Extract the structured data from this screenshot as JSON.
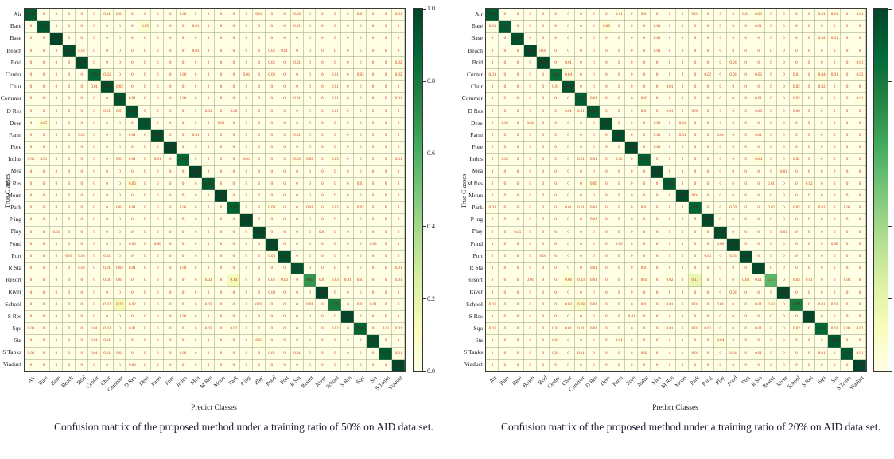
{
  "axis": {
    "x_label": "Predict Classes",
    "y_label": "True Classes"
  },
  "colorbar": {
    "min": 0,
    "max": 1,
    "ticks": [
      "1.0",
      "0.8",
      "0.6",
      "0.4",
      "0.2",
      "0.0"
    ]
  },
  "colors": {
    "cmap_low": "#ffffe5",
    "cmap_high": "#004529",
    "value_red": "#d02f1b",
    "value_dark": "#66180e",
    "grid": "#7d7d5f",
    "border": "#3a3a3a"
  },
  "captions": [
    "Confusion matrix of the proposed method under a training ratio of 50% on AID data set.",
    "Confusion matrix of the proposed method under a training ratio of 20% on AID data set."
  ],
  "chart_data": [
    {
      "type": "heatmap",
      "title": "Confusion matrix, training ratio 50%, AID data set",
      "xlabel": "Predict Classes",
      "ylabel": "True Classes",
      "colormap": "YlGn",
      "vmin": 0,
      "vmax": 1,
      "colorbar_labels": true,
      "categories": [
        "Air",
        "Bare",
        "Base",
        "Beach",
        "Brid",
        "Center",
        "Chur",
        "Commer",
        "D Res",
        "Dese",
        "Farm",
        "Fore",
        "Indus",
        "Mea",
        "M Res",
        "Moun",
        "Park",
        "P ing",
        "Play",
        "Pond",
        "Port",
        "R Sta",
        "Resort",
        "River",
        "School",
        "S Res",
        "Squ",
        "Sta",
        "S Tanks",
        "Viaduct"
      ],
      "diagonal": [
        "0.93",
        "0.94",
        "1.00",
        "0.97",
        "0.97",
        "0.88",
        "0.97",
        "0.95",
        "0.95",
        "0.95",
        "0.97",
        "1.00",
        "0.88",
        "1.00",
        "0.93",
        "1.00",
        "0.90",
        "1.00",
        "0.98",
        "0.99",
        "0.96",
        "0.95",
        "0.69",
        "1.00",
        "0.79",
        "0.99",
        "0.89",
        "0.96",
        "0.93",
        "1.00"
      ],
      "cells": [
        [
          0,
          6,
          "0.01"
        ],
        [
          0,
          7,
          "0.01"
        ],
        [
          0,
          12,
          "0.01"
        ],
        [
          0,
          18,
          "0.01"
        ],
        [
          0,
          21,
          "0.02"
        ],
        [
          0,
          26,
          "0.01"
        ],
        [
          0,
          29,
          "0.01"
        ],
        [
          1,
          9,
          "0.05"
        ],
        [
          1,
          13,
          "0.01"
        ],
        [
          1,
          21,
          "0.01"
        ],
        [
          3,
          4,
          "0.01"
        ],
        [
          3,
          13,
          "0.01"
        ],
        [
          3,
          19,
          "0.01"
        ],
        [
          3,
          20,
          "0.01"
        ],
        [
          4,
          19,
          "0.01"
        ],
        [
          4,
          21,
          "0.01"
        ],
        [
          4,
          29,
          "0.02"
        ],
        [
          5,
          6,
          "0.02"
        ],
        [
          5,
          12,
          "0.02"
        ],
        [
          5,
          17,
          "0.01"
        ],
        [
          5,
          19,
          "0.02"
        ],
        [
          5,
          24,
          "0.01"
        ],
        [
          5,
          26,
          "0.02"
        ],
        [
          5,
          29,
          "0.02"
        ],
        [
          6,
          5,
          "0.01"
        ],
        [
          6,
          7,
          "0.02"
        ],
        [
          6,
          24,
          "0.01"
        ],
        [
          7,
          8,
          "0.01"
        ],
        [
          7,
          12,
          "0.01"
        ],
        [
          7,
          21,
          "0.01"
        ],
        [
          7,
          24,
          "0.01"
        ],
        [
          7,
          29,
          "0.01"
        ],
        [
          8,
          6,
          "0.01"
        ],
        [
          8,
          7,
          "0.01"
        ],
        [
          8,
          14,
          "0.01"
        ],
        [
          8,
          16,
          "0.00"
        ],
        [
          8,
          24,
          "0.01"
        ],
        [
          9,
          1,
          "0.05"
        ],
        [
          9,
          15,
          "0.01"
        ],
        [
          10,
          4,
          "0.01"
        ],
        [
          10,
          8,
          "0.01"
        ],
        [
          10,
          13,
          "0.01"
        ],
        [
          10,
          21,
          "0.01"
        ],
        [
          12,
          0,
          "0.01"
        ],
        [
          12,
          1,
          "0.01"
        ],
        [
          12,
          7,
          "0.01"
        ],
        [
          12,
          8,
          "0.01"
        ],
        [
          12,
          10,
          "0.01"
        ],
        [
          12,
          17,
          "0.01"
        ],
        [
          12,
          21,
          "0.03"
        ],
        [
          12,
          22,
          "0.02"
        ],
        [
          12,
          24,
          "0.03"
        ],
        [
          12,
          29,
          "0.01"
        ],
        [
          14,
          8,
          "0.06"
        ],
        [
          14,
          26,
          "0.01"
        ],
        [
          16,
          7,
          "0.01"
        ],
        [
          16,
          8,
          "0.01"
        ],
        [
          16,
          12,
          "0.01"
        ],
        [
          16,
          19,
          "0.03"
        ],
        [
          16,
          22,
          "0.01"
        ],
        [
          16,
          24,
          "0.02"
        ],
        [
          16,
          26,
          "0.02"
        ],
        [
          18,
          2,
          "0.01"
        ],
        [
          18,
          23,
          "0.01"
        ],
        [
          19,
          8,
          "0.00"
        ],
        [
          19,
          10,
          "0.00"
        ],
        [
          19,
          27,
          "0.00"
        ],
        [
          20,
          3,
          "0.01"
        ],
        [
          20,
          4,
          "0.01"
        ],
        [
          20,
          6,
          "0.01"
        ],
        [
          20,
          19,
          "0.02"
        ],
        [
          21,
          4,
          "0.01"
        ],
        [
          21,
          6,
          "0.01"
        ],
        [
          21,
          7,
          "0.02"
        ],
        [
          21,
          8,
          "0.01"
        ],
        [
          21,
          12,
          "0.01"
        ],
        [
          21,
          29,
          "0.01"
        ],
        [
          22,
          6,
          "0.01"
        ],
        [
          22,
          7,
          "0.01"
        ],
        [
          22,
          14,
          "0.03"
        ],
        [
          22,
          16,
          "0.14"
        ],
        [
          22,
          19,
          "0.01"
        ],
        [
          22,
          20,
          "0.03"
        ],
        [
          22,
          23,
          "0.01"
        ],
        [
          22,
          24,
          "0.03"
        ],
        [
          22,
          25,
          "0.01"
        ],
        [
          22,
          26,
          "0.01"
        ],
        [
          22,
          29,
          "0.01"
        ],
        [
          23,
          19,
          "0.00"
        ],
        [
          24,
          6,
          "0.02"
        ],
        [
          24,
          7,
          "0.13"
        ],
        [
          24,
          8,
          "0.02"
        ],
        [
          24,
          14,
          "0.01"
        ],
        [
          24,
          18,
          "0.01"
        ],
        [
          24,
          22,
          "0.01"
        ],
        [
          24,
          26,
          "0.01"
        ],
        [
          24,
          27,
          "0.01"
        ],
        [
          25,
          12,
          "0.01"
        ],
        [
          26,
          0,
          "0.01"
        ],
        [
          26,
          5,
          "0.01"
        ],
        [
          26,
          6,
          "0.03"
        ],
        [
          26,
          8,
          "0.01"
        ],
        [
          26,
          14,
          "0.01"
        ],
        [
          26,
          16,
          "0.02"
        ],
        [
          26,
          24,
          "0.02"
        ],
        [
          26,
          28,
          "0.01"
        ],
        [
          26,
          29,
          "0.01"
        ],
        [
          27,
          5,
          "0.01"
        ],
        [
          27,
          6,
          "0.01"
        ],
        [
          27,
          18,
          "0.03"
        ],
        [
          28,
          0,
          "0.01"
        ],
        [
          28,
          5,
          "0.01"
        ],
        [
          28,
          6,
          "0.01"
        ],
        [
          28,
          7,
          "0.01"
        ],
        [
          28,
          12,
          "0.02"
        ],
        [
          28,
          19,
          "0.01"
        ],
        [
          28,
          21,
          "0.01"
        ],
        [
          28,
          29,
          "0.01"
        ],
        [
          29,
          8,
          "0.00"
        ]
      ]
    },
    {
      "type": "heatmap",
      "title": "Confusion matrix, training ratio 20%, AID data set",
      "xlabel": "Predict Classes",
      "ylabel": "True Classes",
      "colormap": "YlGn",
      "vmin": 0,
      "vmax": 1,
      "colorbar_labels": false,
      "categories": [
        "Air",
        "Bare",
        "Base",
        "Beach",
        "Brid",
        "Center",
        "Chur",
        "Commer",
        "D Res",
        "Dese",
        "Farm",
        "Fore",
        "Indus",
        "Mea",
        "M Res",
        "Moun",
        "Park",
        "P ing",
        "Play",
        "Pond",
        "Port",
        "R Sta",
        "Resort",
        "River",
        "School",
        "S Res",
        "Squ",
        "Sta",
        "S Tanks",
        "Viaduct"
      ],
      "diagonal": [
        "0.93",
        "0.92",
        "0.96",
        "0.99",
        "0.98",
        "0.85",
        "0.95",
        "0.91",
        "0.93",
        "0.97",
        "0.97",
        "0.99",
        "0.91",
        "0.99",
        "0.92",
        "0.99",
        "0.89",
        "0.99",
        "0.98",
        "0.99",
        "0.98",
        "0.98",
        "0.57",
        "0.99",
        "0.79",
        "0.99",
        "0.87",
        "0.94",
        "0.93",
        "1.00"
      ],
      "cells": [
        [
          0,
          10,
          "0.01"
        ],
        [
          0,
          12,
          "0.01"
        ],
        [
          0,
          16,
          "0.01"
        ],
        [
          0,
          20,
          "0.01"
        ],
        [
          0,
          21,
          "0.03"
        ],
        [
          0,
          26,
          "0.01"
        ],
        [
          0,
          27,
          "0.01"
        ],
        [
          0,
          29,
          "0.01"
        ],
        [
          1,
          0,
          "0.01"
        ],
        [
          1,
          9,
          "0.05"
        ],
        [
          1,
          13,
          "0.01"
        ],
        [
          1,
          21,
          "0.01"
        ],
        [
          2,
          13,
          "0.01"
        ],
        [
          2,
          26,
          "0.02"
        ],
        [
          2,
          27,
          "0.01"
        ],
        [
          3,
          4,
          "0.01"
        ],
        [
          3,
          13,
          "0.01"
        ],
        [
          4,
          6,
          "0.01"
        ],
        [
          4,
          19,
          "0.01"
        ],
        [
          4,
          29,
          "0.01"
        ],
        [
          5,
          0,
          "0.01"
        ],
        [
          5,
          6,
          "0.04"
        ],
        [
          5,
          17,
          "0.02"
        ],
        [
          5,
          19,
          "0.01"
        ],
        [
          5,
          21,
          "0.02"
        ],
        [
          5,
          24,
          "0.01"
        ],
        [
          5,
          26,
          "0.04"
        ],
        [
          5,
          27,
          "0.01"
        ],
        [
          5,
          29,
          "0.02"
        ],
        [
          6,
          5,
          "0.01"
        ],
        [
          6,
          14,
          "0.01"
        ],
        [
          6,
          24,
          "0.02"
        ],
        [
          6,
          26,
          "0.02"
        ],
        [
          7,
          8,
          "0.01"
        ],
        [
          7,
          12,
          "0.02"
        ],
        [
          7,
          21,
          "0.01"
        ],
        [
          7,
          24,
          "0.02"
        ],
        [
          7,
          29,
          "0.01"
        ],
        [
          8,
          6,
          "0.01"
        ],
        [
          8,
          7,
          "0.01"
        ],
        [
          8,
          12,
          "0.01"
        ],
        [
          8,
          14,
          "0.01"
        ],
        [
          8,
          16,
          "0.00"
        ],
        [
          8,
          21,
          "0.00"
        ],
        [
          8,
          24,
          "0.00"
        ],
        [
          9,
          1,
          "0.01"
        ],
        [
          9,
          3,
          "0.01"
        ],
        [
          9,
          13,
          "0.01"
        ],
        [
          9,
          15,
          "0.01"
        ],
        [
          10,
          13,
          "0.01"
        ],
        [
          10,
          15,
          "0.01"
        ],
        [
          10,
          18,
          "0.01"
        ],
        [
          10,
          21,
          "0.01"
        ],
        [
          11,
          13,
          "0.01"
        ],
        [
          12,
          1,
          "0.01"
        ],
        [
          12,
          7,
          "0.01"
        ],
        [
          12,
          8,
          "0.01"
        ],
        [
          12,
          10,
          "0.02"
        ],
        [
          12,
          21,
          "0.04"
        ],
        [
          12,
          24,
          "0.02"
        ],
        [
          13,
          23,
          "0.01"
        ],
        [
          14,
          8,
          "0.05"
        ],
        [
          14,
          22,
          "0.01"
        ],
        [
          14,
          25,
          "0.02"
        ],
        [
          15,
          16,
          "0.01"
        ],
        [
          16,
          0,
          "0.01"
        ],
        [
          16,
          6,
          "0.01"
        ],
        [
          16,
          7,
          "0.01"
        ],
        [
          16,
          8,
          "0.01"
        ],
        [
          16,
          12,
          "0.01"
        ],
        [
          16,
          19,
          "0.02"
        ],
        [
          16,
          22,
          "0.02"
        ],
        [
          16,
          24,
          "0.02"
        ],
        [
          16,
          26,
          "0.02"
        ],
        [
          16,
          28,
          "0.01"
        ],
        [
          17,
          8,
          "0.01"
        ],
        [
          18,
          2,
          "0.01"
        ],
        [
          18,
          23,
          "0.01"
        ],
        [
          19,
          10,
          "0.00"
        ],
        [
          19,
          18,
          "0.00"
        ],
        [
          19,
          27,
          "0.00"
        ],
        [
          20,
          4,
          "0.01"
        ],
        [
          20,
          17,
          "0.01"
        ],
        [
          20,
          19,
          "0.01"
        ],
        [
          21,
          8,
          "0.01"
        ],
        [
          21,
          12,
          "0.01"
        ],
        [
          22,
          3,
          "0.01"
        ],
        [
          22,
          6,
          "0.06"
        ],
        [
          22,
          7,
          "0.03"
        ],
        [
          22,
          8,
          "0.01"
        ],
        [
          22,
          12,
          "0.03"
        ],
        [
          22,
          14,
          "0.02"
        ],
        [
          22,
          16,
          "0.17"
        ],
        [
          22,
          20,
          "0.04"
        ],
        [
          22,
          21,
          "0.01"
        ],
        [
          22,
          24,
          "0.03"
        ],
        [
          22,
          25,
          "0.01"
        ],
        [
          22,
          28,
          "0.02"
        ],
        [
          23,
          19,
          "0.01"
        ],
        [
          24,
          0,
          "0.01"
        ],
        [
          24,
          6,
          "0.03"
        ],
        [
          24,
          7,
          "0.08"
        ],
        [
          24,
          8,
          "0.01"
        ],
        [
          24,
          12,
          "0.01"
        ],
        [
          24,
          14,
          "0.01"
        ],
        [
          24,
          16,
          "0.01"
        ],
        [
          24,
          18,
          "0.01"
        ],
        [
          24,
          21,
          "0.01"
        ],
        [
          24,
          22,
          "0.03"
        ],
        [
          24,
          26,
          "0.01"
        ],
        [
          24,
          27,
          "0.01"
        ],
        [
          25,
          11,
          "0.01"
        ],
        [
          26,
          0,
          "0.01"
        ],
        [
          26,
          5,
          "0.01"
        ],
        [
          26,
          6,
          "0.01"
        ],
        [
          26,
          7,
          "0.01"
        ],
        [
          26,
          8,
          "0.01"
        ],
        [
          26,
          14,
          "0.01"
        ],
        [
          26,
          16,
          "0.02"
        ],
        [
          26,
          17,
          "0.01"
        ],
        [
          26,
          21,
          "0.01"
        ],
        [
          26,
          24,
          "0.02"
        ],
        [
          26,
          27,
          "0.01"
        ],
        [
          26,
          28,
          "0.01"
        ],
        [
          26,
          29,
          "0.02"
        ],
        [
          27,
          5,
          "0.01"
        ],
        [
          27,
          10,
          "0.01"
        ],
        [
          27,
          18,
          "0.04"
        ],
        [
          28,
          5,
          "0.01"
        ],
        [
          28,
          7,
          "0.01"
        ],
        [
          28,
          12,
          "0.02"
        ],
        [
          28,
          16,
          "0.01"
        ],
        [
          28,
          19,
          "0.01"
        ],
        [
          28,
          21,
          "0.01"
        ],
        [
          28,
          26,
          "0.01"
        ],
        [
          28,
          29,
          "0.01"
        ]
      ]
    }
  ]
}
